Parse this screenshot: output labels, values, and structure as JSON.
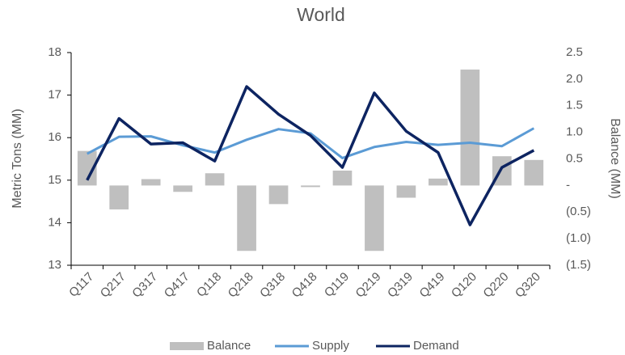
{
  "chart_data": {
    "type": "combo",
    "title": "World",
    "categories": [
      "Q117",
      "Q217",
      "Q317",
      "Q417",
      "Q118",
      "Q218",
      "Q318",
      "Q418",
      "Q119",
      "Q219",
      "Q319",
      "Q419",
      "Q120",
      "Q220",
      "Q320"
    ],
    "ylabel": "Metric Tons (MM)",
    "y2label": "Balance (MM)",
    "ylim": [
      13,
      18
    ],
    "yticks": [
      13,
      14,
      15,
      16,
      17,
      18
    ],
    "y2lim": [
      -1.5,
      2.5
    ],
    "y2ticks": [
      {
        "value": -1.5,
        "label": "(1.5)"
      },
      {
        "value": -1.0,
        "label": "(1.0)"
      },
      {
        "value": -0.5,
        "label": "(0.5)"
      },
      {
        "value": 0,
        "label": "-"
      },
      0.5,
      {
        "value": 1.0,
        "label": "1.0"
      },
      1.5,
      {
        "value": 2.0,
        "label": "2.0"
      },
      2.5
    ],
    "legend": "bottom",
    "series": [
      {
        "name": "Balance",
        "type": "bar",
        "axis": "y2",
        "color": "#bfbfbf",
        "values": [
          0.65,
          -0.45,
          0.12,
          -0.12,
          0.23,
          -1.23,
          -0.35,
          -0.03,
          0.28,
          -1.23,
          -0.23,
          0.13,
          2.18,
          0.55,
          0.48
        ]
      },
      {
        "name": "Supply",
        "type": "line",
        "color": "#5b9bd5",
        "values": [
          15.62,
          16.02,
          16.03,
          15.82,
          15.65,
          15.95,
          16.2,
          16.1,
          15.52,
          15.78,
          15.9,
          15.83,
          15.88,
          15.8,
          16.22
        ]
      },
      {
        "name": "Demand",
        "type": "line",
        "color": "#0d2461",
        "values": [
          15.0,
          16.45,
          15.85,
          15.88,
          15.45,
          17.2,
          16.55,
          16.05,
          15.3,
          17.05,
          16.15,
          15.65,
          13.95,
          15.3,
          15.7
        ]
      }
    ]
  }
}
